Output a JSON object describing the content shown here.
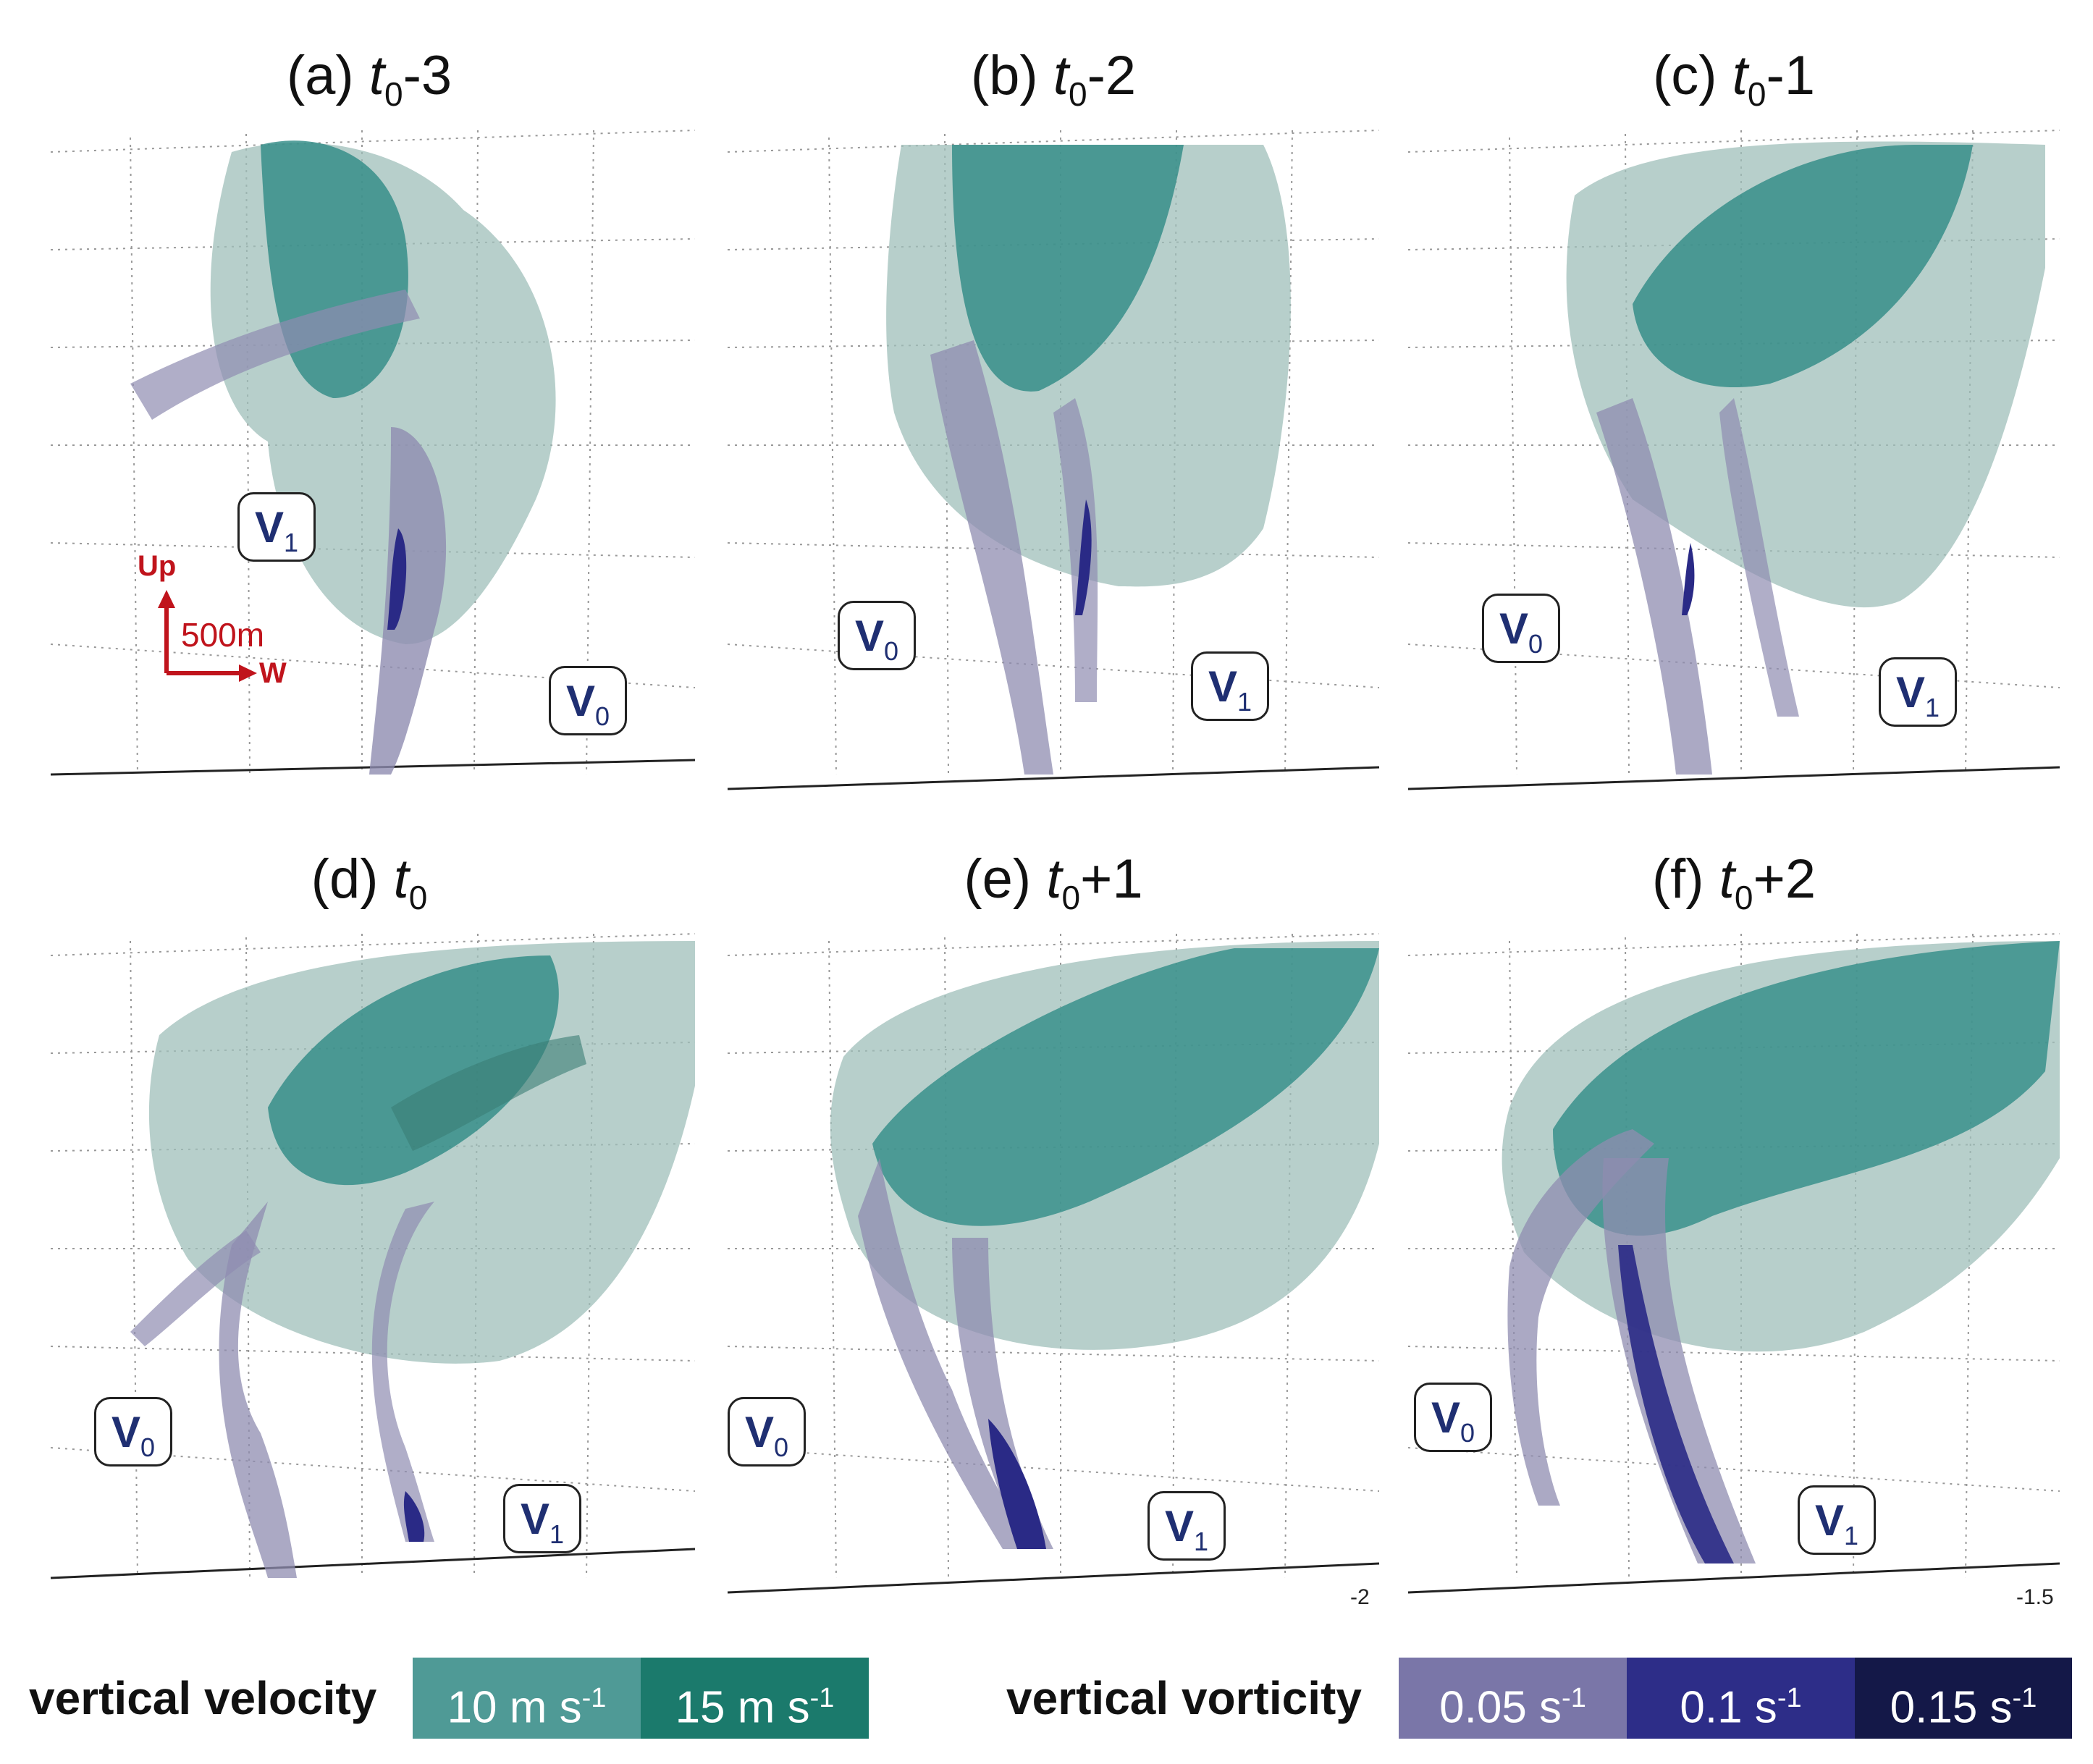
{
  "panels": [
    {
      "id": "a",
      "prefix": "(a) ",
      "t": "t",
      "sub": "0",
      "suffix": "-3",
      "labels": [
        {
          "name": "V",
          "sub": "1"
        },
        {
          "name": "V",
          "sub": "0"
        }
      ]
    },
    {
      "id": "b",
      "prefix": "(b) ",
      "t": "t",
      "sub": "0",
      "suffix": "-2",
      "labels": [
        {
          "name": "V",
          "sub": "0"
        },
        {
          "name": "V",
          "sub": "1"
        }
      ]
    },
    {
      "id": "c",
      "prefix": "(c) ",
      "t": "t",
      "sub": "0",
      "suffix": "-1",
      "labels": [
        {
          "name": "V",
          "sub": "0"
        },
        {
          "name": "V",
          "sub": "1"
        }
      ]
    },
    {
      "id": "d",
      "prefix": "(d) ",
      "t": "t",
      "sub": "0",
      "suffix": "",
      "labels": [
        {
          "name": "V",
          "sub": "0"
        },
        {
          "name": "V",
          "sub": "1"
        }
      ]
    },
    {
      "id": "e",
      "prefix": "(e) ",
      "t": "t",
      "sub": "0",
      "suffix": "+1",
      "labels": [
        {
          "name": "V",
          "sub": "0"
        },
        {
          "name": "V",
          "sub": "1"
        }
      ]
    },
    {
      "id": "f",
      "prefix": "(f) ",
      "t": "t",
      "sub": "0",
      "suffix": "+2",
      "labels": [
        {
          "name": "V",
          "sub": "0"
        },
        {
          "name": "V",
          "sub": "1"
        }
      ]
    }
  ],
  "compass": {
    "up": "Up",
    "scale": "500m",
    "west": "W"
  },
  "axis_ticks": {
    "e": "-2",
    "f": "-1.5"
  },
  "legend": {
    "velocity": {
      "title": "vertical velocity",
      "items": [
        {
          "value": "10 m s",
          "exp": "-1",
          "color": "#4f9a96"
        },
        {
          "value": "15 m s",
          "exp": "-1",
          "color": "#1b7a6c"
        }
      ]
    },
    "vorticity": {
      "title": "vertical vorticity",
      "items": [
        {
          "value": "0.05 s",
          "exp": "-1",
          "color": "#7a76a8"
        },
        {
          "value": "0.1 s",
          "exp": "-1",
          "color": "#2d2d88"
        },
        {
          "value": "0.15 s",
          "exp": "-1",
          "color": "#141848"
        }
      ]
    }
  },
  "colors": {
    "pale_teal": "#9fbfba",
    "teal": "#2e8a85",
    "lavender": "#8f8cb0",
    "navy": "#2a2a86",
    "red": "#c0141c"
  }
}
